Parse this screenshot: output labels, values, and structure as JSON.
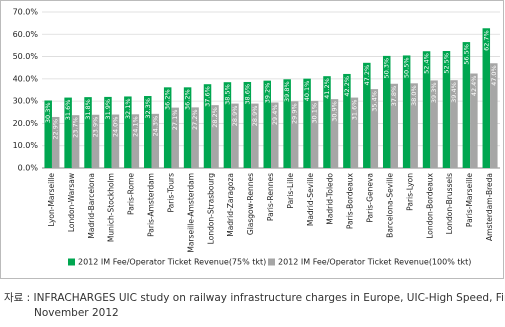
{
  "chart_data": {
    "type": "bar",
    "categories": [
      "Lyon-Marseille",
      "London-Warsaw",
      "Madrid-Barcelona",
      "Munich-Stockholm",
      "Paris-Rome",
      "Paris-Amsterdam",
      "Paris-Tours",
      "Marseille-Amsterdam",
      "London-Strasbourg",
      "Madrid-Zaragoza",
      "Glasgow-Rennes",
      "Paris-Rennes",
      "Paris-Lille",
      "Madrid-Seville",
      "Madrid-Toledo",
      "Paris-Bordeaux",
      "Paris-Geneva",
      "Barcelona-Seville",
      "Paris-Lyon",
      "London-Bordeaux",
      "London-Brussels",
      "Paris-Marseille",
      "Amsterdam-Breda"
    ],
    "series": [
      {
        "name": "2012 IM Fee/Operator Ticket Revenue(75% tkt)",
        "color": "#00a650",
        "values": [
          30.3,
          31.6,
          31.8,
          31.9,
          32.1,
          32.3,
          36.2,
          36.2,
          37.6,
          38.5,
          38.6,
          39.2,
          39.8,
          40.1,
          41.2,
          42.2,
          47.2,
          50.3,
          50.5,
          52.4,
          52.5,
          56.5,
          62.7
        ],
        "value_labels": [
          "30.3%",
          "31.6%",
          "31.8%",
          "31.9%",
          "32.1%",
          "32.3%",
          "36.2%",
          "36.2%",
          "37.6%",
          "38.5%",
          "38.6%",
          "39.2%",
          "39.8%",
          "40.1%",
          "41.2%",
          "42.2%",
          "47.2%",
          "50.3%",
          "50.5%",
          "52.4%",
          "52.5%",
          "56.5%",
          "62.7%"
        ]
      },
      {
        "name": "2012 IM Fee/Operator Ticket Revenue(100% tkt)",
        "color": "#a6a6a6",
        "values": [
          22.9,
          23.7,
          23.9,
          24.0,
          24.1,
          24.3,
          27.1,
          27.2,
          28.2,
          28.9,
          28.9,
          29.4,
          29.9,
          30.1,
          30.9,
          31.6,
          35.4,
          37.8,
          38.0,
          39.3,
          39.4,
          42.4,
          47.0
        ],
        "value_labels": [
          "22.9%",
          "23.7%",
          "23.9%",
          "24.0%",
          "24.1%",
          "24.3%",
          "27.1%",
          "27.2%",
          "28.2%",
          "28.9%",
          "28.9%",
          "29.4%",
          "29.9%",
          "30.1%",
          "30.9%",
          "31.6%",
          "35.4%",
          "37.8%",
          "38.0%",
          "39.3%",
          "39.4%",
          "42.4%",
          "47.0%"
        ]
      }
    ],
    "ylim": [
      0,
      70
    ],
    "yticks": [
      {
        "value": 0,
        "label": "0.0%"
      },
      {
        "value": 10,
        "label": "10.0%"
      },
      {
        "value": 20,
        "label": "20.0%"
      },
      {
        "value": 30,
        "label": "30.0%"
      },
      {
        "value": 40,
        "label": "40.0%"
      },
      {
        "value": 50,
        "label": "50.0%"
      },
      {
        "value": 60,
        "label": "60.0%"
      },
      {
        "value": 70,
        "label": "70.0%"
      }
    ],
    "grid": true,
    "source": [
      "자료 : INFRACHARGES UIC study on railway infrastructure charges in Europe, UIC-High Speed, Final report",
      "November 2012"
    ]
  }
}
